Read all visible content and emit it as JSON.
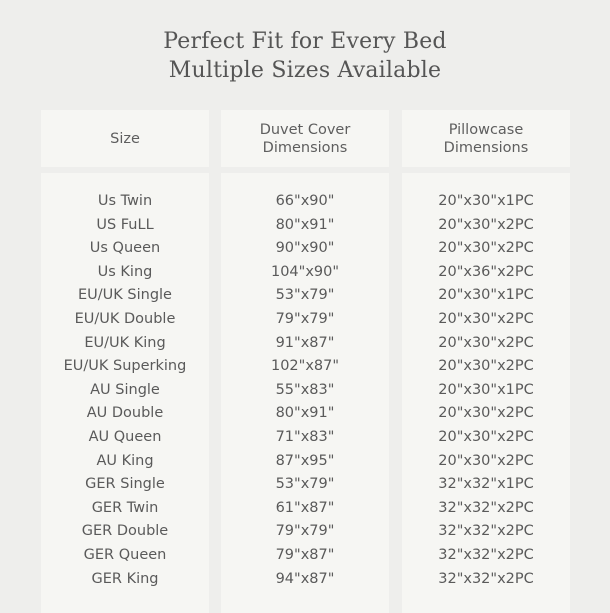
{
  "title": {
    "line1": "Perfect Fit for Every Bed",
    "line2": "Multiple Sizes Available"
  },
  "headers": {
    "size": "Size",
    "duvet": "Duvet Cover\nDimensions",
    "pillow": "Pillowcase\nDimensions"
  },
  "rows": [
    {
      "size": "Us Twin",
      "duvet": "66\"x90\"",
      "pillow": "20\"x30\"x1PC"
    },
    {
      "size": "US FuLL",
      "duvet": "80\"x91\"",
      "pillow": "20\"x30\"x2PC"
    },
    {
      "size": "Us Queen",
      "duvet": "90\"x90\"",
      "pillow": "20\"x30\"x2PC"
    },
    {
      "size": "Us King",
      "duvet": "104\"x90\"",
      "pillow": "20\"x36\"x2PC"
    },
    {
      "size": "EU/UK Single",
      "duvet": "53\"x79\"",
      "pillow": "20\"x30\"x1PC"
    },
    {
      "size": "EU/UK Double",
      "duvet": "79\"x79\"",
      "pillow": "20\"x30\"x2PC"
    },
    {
      "size": "EU/UK King",
      "duvet": "91\"x87\"",
      "pillow": "20\"x30\"x2PC"
    },
    {
      "size": "EU/UK Superking",
      "duvet": "102\"x87\"",
      "pillow": "20\"x30\"x2PC"
    },
    {
      "size": "AU Single",
      "duvet": "55\"x83\"",
      "pillow": "20\"x30\"x1PC"
    },
    {
      "size": "AU Double",
      "duvet": "80\"x91\"",
      "pillow": "20\"x30\"x2PC"
    },
    {
      "size": "AU Queen",
      "duvet": "71\"x83\"",
      "pillow": "20\"x30\"x2PC"
    },
    {
      "size": "AU King",
      "duvet": "87\"x95\"",
      "pillow": "20\"x30\"x2PC"
    },
    {
      "size": "GER Single",
      "duvet": "53\"x79\"",
      "pillow": "32\"x32\"x1PC"
    },
    {
      "size": "GER Twin",
      "duvet": "61\"x87\"",
      "pillow": "32\"x32\"x2PC"
    },
    {
      "size": "GER Double",
      "duvet": "79\"x79\"",
      "pillow": "32\"x32\"x2PC"
    },
    {
      "size": "GER Queen",
      "duvet": "79\"x87\"",
      "pillow": "32\"x32\"x2PC"
    },
    {
      "size": "GER King",
      "duvet": "94\"x87\"",
      "pillow": "32\"x32\"x2PC"
    }
  ]
}
